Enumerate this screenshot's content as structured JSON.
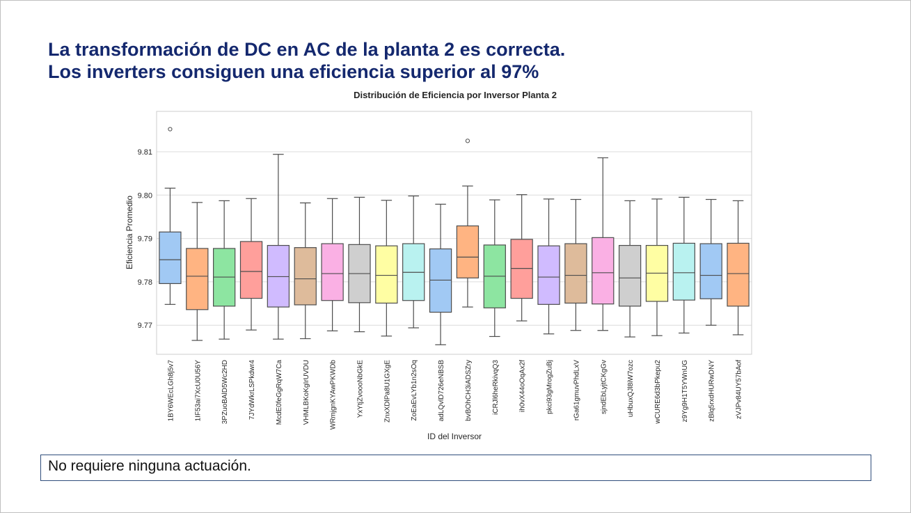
{
  "slide": {
    "headline_line1": "La transformación de DC en AC de la planta 2 es correcta.",
    "headline_line2": "Los inverters consiguen una eficiencia superior al 97%",
    "note": "No requiere ninguna actuación."
  },
  "chart_data": {
    "type": "boxplot",
    "title": "Distribución de Eficiencia por Inversor Planta 2",
    "xlabel": "ID del Inversor",
    "ylabel": "Eficiencia Promedio",
    "ylim": [
      9.7633,
      9.8193
    ],
    "yticks": [
      9.77,
      9.78,
      9.79,
      9.8,
      9.81
    ],
    "ytick_labels": [
      "9.77",
      "9.78",
      "9.79",
      "9.80",
      "9.81"
    ],
    "grid": "horizontal",
    "legend": "none",
    "categories": [
      "1BY6WEcLGh8j5v7",
      "1IF53ai7XcU0U56Y",
      "3PZuoBAlD5Wc2HD",
      "7JYdWkrLSPkdwr4",
      "McdE0feGgRqW7Ca",
      "VHMLBKoKgIrUVDU",
      "WRmjgnKYAwPKWDb",
      "YxYtjZvoooNbGkE",
      "ZnxXDlPa8U1GXgE",
      "ZoEaEvLYb1n2sOq",
      "adLQvlD726eNBSB",
      "bvBOhCH3iADSZry",
      "iCRJl6heRkivqQ3",
      "ih0vX44oOqAx2f",
      "pkci93gMrogZuBj",
      "rGa61gmuvPhdLxV",
      "sjndEbLyjtCKgGv",
      "uHbuxQJl8iW7ozc",
      "wCURE6d3bPkepu2",
      "z9Yg9H1T5YWnUG",
      "zBlq5rxdHURwDNY",
      "zVJPv84UY57bAof"
    ],
    "colors": [
      "#a1c9f4",
      "#ffb482",
      "#8de5a1",
      "#ff9f9b",
      "#d0bbff",
      "#debb9b",
      "#fab0e4",
      "#cfcfcf",
      "#fffea3",
      "#b9f2f0",
      "#a1c9f4",
      "#ffb482",
      "#8de5a1",
      "#ff9f9b",
      "#d0bbff",
      "#debb9b",
      "#fab0e4",
      "#cfcfcf",
      "#fffea3",
      "#b9f2f0",
      "#a1c9f4",
      "#ffb482"
    ],
    "boxes": [
      {
        "min": 9.7748,
        "q1": 9.7796,
        "median": 9.7851,
        "q3": 9.7915,
        "max": 9.8016,
        "outliers": [
          9.8152
        ]
      },
      {
        "min": 9.7665,
        "q1": 9.7736,
        "median": 9.7813,
        "q3": 9.7877,
        "max": 9.7983,
        "outliers": []
      },
      {
        "min": 9.7668,
        "q1": 9.7744,
        "median": 9.7811,
        "q3": 9.7877,
        "max": 9.7987,
        "outliers": []
      },
      {
        "min": 9.7689,
        "q1": 9.7762,
        "median": 9.7824,
        "q3": 9.7893,
        "max": 9.7992,
        "outliers": []
      },
      {
        "min": 9.7668,
        "q1": 9.7742,
        "median": 9.7812,
        "q3": 9.7884,
        "max": 9.8094,
        "outliers": []
      },
      {
        "min": 9.7669,
        "q1": 9.7747,
        "median": 9.7807,
        "q3": 9.7879,
        "max": 9.7982,
        "outliers": []
      },
      {
        "min": 9.7687,
        "q1": 9.7757,
        "median": 9.7819,
        "q3": 9.7888,
        "max": 9.7992,
        "outliers": []
      },
      {
        "min": 9.7685,
        "q1": 9.7752,
        "median": 9.7819,
        "q3": 9.7886,
        "max": 9.7995,
        "outliers": []
      },
      {
        "min": 9.7675,
        "q1": 9.7751,
        "median": 9.7815,
        "q3": 9.7883,
        "max": 9.7988,
        "outliers": []
      },
      {
        "min": 9.7694,
        "q1": 9.7757,
        "median": 9.7822,
        "q3": 9.7888,
        "max": 9.7998,
        "outliers": []
      },
      {
        "min": 9.7655,
        "q1": 9.773,
        "median": 9.7804,
        "q3": 9.7876,
        "max": 9.7979,
        "outliers": []
      },
      {
        "min": 9.7742,
        "q1": 9.7809,
        "median": 9.7857,
        "q3": 9.7929,
        "max": 9.8021,
        "outliers": [
          9.8125
        ]
      },
      {
        "min": 9.7674,
        "q1": 9.774,
        "median": 9.7813,
        "q3": 9.7885,
        "max": 9.7989,
        "outliers": []
      },
      {
        "min": 9.771,
        "q1": 9.7762,
        "median": 9.7831,
        "q3": 9.7898,
        "max": 9.8001,
        "outliers": []
      },
      {
        "min": 9.768,
        "q1": 9.7748,
        "median": 9.7811,
        "q3": 9.7883,
        "max": 9.7991,
        "outliers": []
      },
      {
        "min": 9.7688,
        "q1": 9.7751,
        "median": 9.7815,
        "q3": 9.7888,
        "max": 9.799,
        "outliers": []
      },
      {
        "min": 9.7688,
        "q1": 9.7749,
        "median": 9.7821,
        "q3": 9.7902,
        "max": 9.8086,
        "outliers": []
      },
      {
        "min": 9.7673,
        "q1": 9.7744,
        "median": 9.7809,
        "q3": 9.7884,
        "max": 9.7987,
        "outliers": []
      },
      {
        "min": 9.7676,
        "q1": 9.7755,
        "median": 9.782,
        "q3": 9.7884,
        "max": 9.7991,
        "outliers": []
      },
      {
        "min": 9.7682,
        "q1": 9.7758,
        "median": 9.7821,
        "q3": 9.7889,
        "max": 9.7995,
        "outliers": []
      },
      {
        "min": 9.77,
        "q1": 9.7761,
        "median": 9.7815,
        "q3": 9.7888,
        "max": 9.799,
        "outliers": []
      },
      {
        "min": 9.7678,
        "q1": 9.7744,
        "median": 9.7819,
        "q3": 9.7889,
        "max": 9.7987,
        "outliers": []
      }
    ]
  }
}
